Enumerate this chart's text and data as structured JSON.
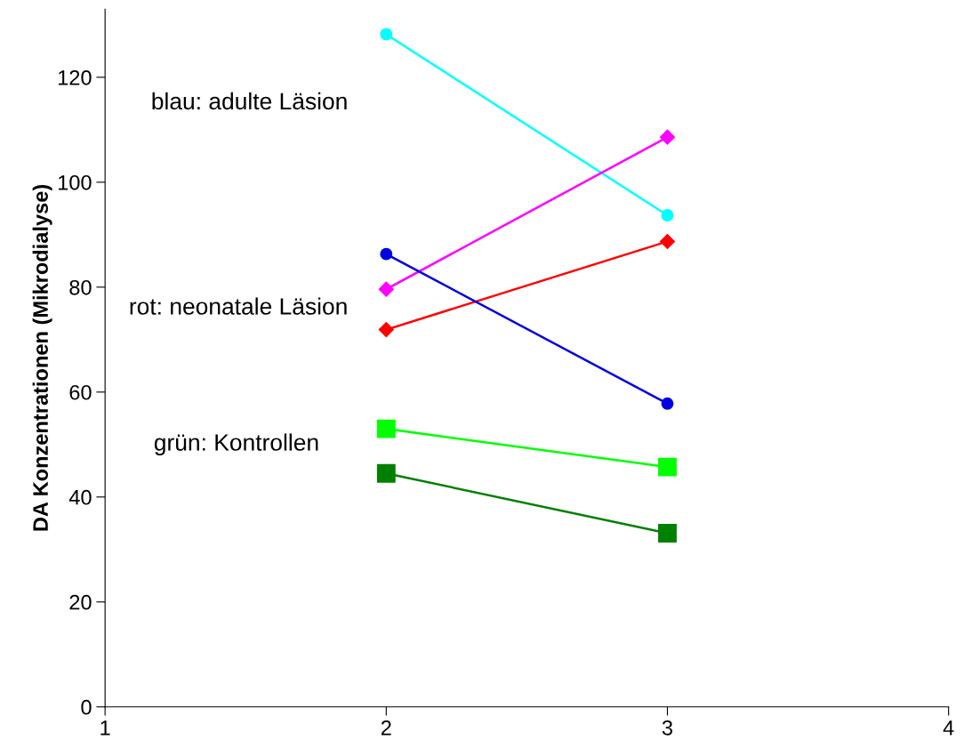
{
  "chart_data": {
    "type": "line",
    "ylabel": "DA Konzentrationen (Mikrodialyse)",
    "x": [
      2,
      3
    ],
    "xlim": [
      1,
      4
    ],
    "xticks": [
      1,
      2,
      3,
      4
    ],
    "ylim": [
      0,
      133
    ],
    "yticks": [
      0,
      20,
      40,
      60,
      80,
      100,
      120
    ],
    "grid": false,
    "legend": false,
    "series": [
      {
        "color": "#00ffff",
        "marker": "circle",
        "values": [
          128.2,
          93.7
        ]
      },
      {
        "color": "#ff00ff",
        "marker": "diamond",
        "values": [
          79.6,
          108.6
        ]
      },
      {
        "color": "#ff0000",
        "marker": "diamond",
        "values": [
          71.9,
          88.7
        ]
      },
      {
        "color": "#0000e0",
        "marker": "circle",
        "values": [
          86.3,
          57.8
        ]
      },
      {
        "color": "#00ff00",
        "marker": "square",
        "values": [
          53.0,
          45.7
        ]
      },
      {
        "color": "#008000",
        "marker": "square",
        "values": [
          44.5,
          33.1
        ]
      }
    ],
    "annotations": [
      "blau: adulte Läsion",
      "rot: neonatale Läsion",
      "grün: Kontrollen"
    ]
  }
}
